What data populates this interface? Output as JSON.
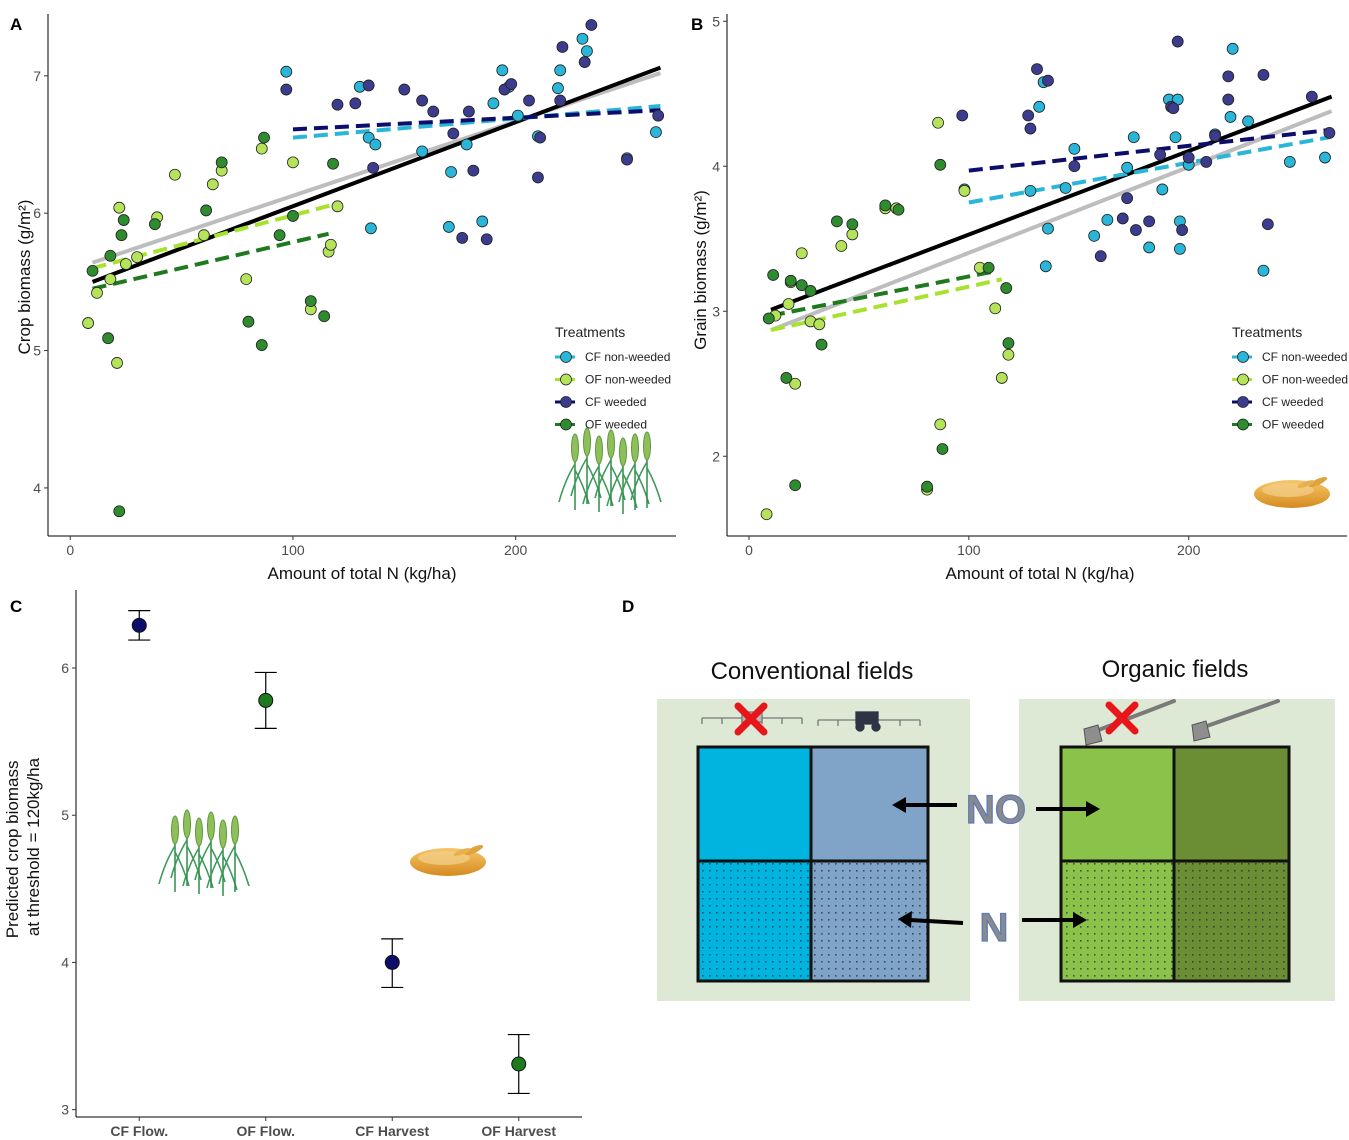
{
  "panels": {
    "a": "A",
    "b": "B",
    "c": "C",
    "d": "D"
  },
  "colors": {
    "cf_non_weeded": "#29b6d8",
    "of_non_weeded": "#b5e35a",
    "cf_weeded": "#3c3c8f",
    "of_weeded": "#2e8b2e",
    "cf_non_weeded_line": "#29b6d8",
    "of_non_weeded_line": "#a6e22e",
    "cf_weeded_line": "#0d0d6b",
    "of_weeded_line": "#1f7a1f",
    "overall_line": "#000000",
    "overall_line_2": "#bdbdbd",
    "conv_a": "#00b4e0",
    "conv_b": "#7fa4c8",
    "org_a": "#8bc34a",
    "org_b": "#6b8e35",
    "field_bg": "#dde9d4"
  },
  "legend": {
    "title": "Treatments",
    "items": [
      "CF non-weeded",
      "OF non-weeded",
      "CF weeded",
      "OF weeded"
    ]
  },
  "chart_data": [
    {
      "panel": "A",
      "type": "scatter",
      "xlabel": "Amount of total N (kg/ha)",
      "ylabel": "Crop biomass (g/m²)",
      "xlim": [
        -10,
        272
      ],
      "ylim": [
        3.65,
        7.45
      ],
      "xticks": [
        0,
        100,
        200
      ],
      "yticks": [
        4,
        5,
        6,
        7
      ],
      "series": [
        {
          "name": "CF non-weeded",
          "points": [
            [
              97,
              7.03
            ],
            [
              130,
              6.92
            ],
            [
              134,
              6.55
            ],
            [
              137,
              6.5
            ],
            [
              135,
              5.89
            ],
            [
              158,
              6.45
            ],
            [
              171,
              6.3
            ],
            [
              170,
              5.9
            ],
            [
              178,
              6.5
            ],
            [
              185,
              5.94
            ],
            [
              190,
              6.8
            ],
            [
              194,
              7.04
            ],
            [
              197,
              6.92
            ],
            [
              201,
              6.71
            ],
            [
              210,
              6.56
            ],
            [
              219,
              6.91
            ],
            [
              220,
              7.04
            ],
            [
              230,
              7.27
            ],
            [
              232,
              7.18
            ],
            [
              263,
              6.59
            ],
            [
              250,
              6.4
            ]
          ]
        },
        {
          "name": "OF non-weeded",
          "points": [
            [
              8,
              5.2
            ],
            [
              12,
              5.42
            ],
            [
              18,
              5.52
            ],
            [
              21,
              4.91
            ],
            [
              22,
              6.04
            ],
            [
              25,
              5.63
            ],
            [
              30,
              5.68
            ],
            [
              39,
              5.97
            ],
            [
              47,
              6.28
            ],
            [
              60,
              5.84
            ],
            [
              64,
              6.21
            ],
            [
              68,
              6.31
            ],
            [
              79,
              5.52
            ],
            [
              86,
              6.47
            ],
            [
              100,
              6.37
            ],
            [
              108,
              5.3
            ],
            [
              116,
              5.72
            ],
            [
              117,
              5.77
            ],
            [
              120,
              6.05
            ]
          ]
        },
        {
          "name": "CF weeded",
          "points": [
            [
              97,
              6.9
            ],
            [
              120,
              6.79
            ],
            [
              128,
              6.8
            ],
            [
              134,
              6.93
            ],
            [
              136,
              6.33
            ],
            [
              150,
              6.9
            ],
            [
              158,
              6.82
            ],
            [
              163,
              6.74
            ],
            [
              172,
              6.58
            ],
            [
              176,
              5.82
            ],
            [
              179,
              6.74
            ],
            [
              181,
              6.31
            ],
            [
              187,
              5.81
            ],
            [
              195,
              6.9
            ],
            [
              198,
              6.94
            ],
            [
              206,
              6.82
            ],
            [
              210,
              6.26
            ],
            [
              211,
              6.55
            ],
            [
              220,
              6.82
            ],
            [
              221,
              7.21
            ],
            [
              231,
              7.1
            ],
            [
              234,
              7.37
            ],
            [
              250,
              6.39
            ],
            [
              264,
              6.71
            ]
          ]
        },
        {
          "name": "OF weeded",
          "points": [
            [
              10,
              5.58
            ],
            [
              17,
              5.09
            ],
            [
              18,
              5.69
            ],
            [
              22,
              3.83
            ],
            [
              23,
              5.84
            ],
            [
              24,
              5.95
            ],
            [
              38,
              5.92
            ],
            [
              61,
              6.02
            ],
            [
              68,
              6.37
            ],
            [
              80,
              5.21
            ],
            [
              86,
              5.04
            ],
            [
              87,
              6.55
            ],
            [
              94,
              5.84
            ],
            [
              100,
              5.98
            ],
            [
              108,
              5.36
            ],
            [
              114,
              5.25
            ],
            [
              118,
              6.36
            ]
          ]
        }
      ],
      "fits": [
        {
          "name": "CF non-weeded",
          "x": [
            100,
            265
          ],
          "y": [
            6.55,
            6.78
          ]
        },
        {
          "name": "OF non-weeded",
          "x": [
            10,
            120
          ],
          "y": [
            5.6,
            6.07
          ]
        },
        {
          "name": "CF weeded",
          "x": [
            100,
            265
          ],
          "y": [
            6.61,
            6.75
          ]
        },
        {
          "name": "OF weeded",
          "x": [
            10,
            116
          ],
          "y": [
            5.45,
            5.85
          ]
        },
        {
          "name": "overall-grey",
          "x": [
            10,
            265
          ],
          "y": [
            5.64,
            7.02
          ]
        },
        {
          "name": "overall-black",
          "x": [
            10,
            265
          ],
          "y": [
            5.5,
            7.06
          ]
        }
      ]
    },
    {
      "panel": "B",
      "type": "scatter",
      "xlabel": "Amount of total N (kg/ha)",
      "ylabel": "Grain biomass (g/m²)",
      "xlim": [
        -10,
        272
      ],
      "ylim": [
        1.45,
        5.05
      ],
      "xticks": [
        0,
        100,
        200
      ],
      "yticks": [
        2,
        3,
        4,
        5
      ],
      "series": [
        {
          "name": "CF non-weeded",
          "points": [
            [
              98,
              3.84
            ],
            [
              128,
              3.83
            ],
            [
              132,
              4.41
            ],
            [
              134,
              4.58
            ],
            [
              135,
              3.31
            ],
            [
              136,
              3.57
            ],
            [
              144,
              3.85
            ],
            [
              148,
              4.12
            ],
            [
              157,
              3.52
            ],
            [
              163,
              3.63
            ],
            [
              172,
              3.99
            ],
            [
              175,
              4.2
            ],
            [
              182,
              3.44
            ],
            [
              188,
              3.84
            ],
            [
              191,
              4.46
            ],
            [
              194,
              4.2
            ],
            [
              195,
              4.46
            ],
            [
              196,
              3.43
            ],
            [
              196,
              3.62
            ],
            [
              200,
              4.01
            ],
            [
              212,
              4.22
            ],
            [
              219,
              4.34
            ],
            [
              220,
              4.81
            ],
            [
              227,
              4.31
            ],
            [
              234,
              3.28
            ],
            [
              246,
              4.03
            ],
            [
              262,
              4.06
            ]
          ]
        },
        {
          "name": "OF non-weeded",
          "points": [
            [
              8,
              1.6
            ],
            [
              12,
              2.97
            ],
            [
              18,
              3.05
            ],
            [
              19,
              3.2
            ],
            [
              21,
              2.5
            ],
            [
              24,
              3.4
            ],
            [
              28,
              2.93
            ],
            [
              32,
              2.91
            ],
            [
              42,
              3.45
            ],
            [
              47,
              3.53
            ],
            [
              62,
              3.71
            ],
            [
              67,
              3.71
            ],
            [
              81,
              1.77
            ],
            [
              86,
              4.3
            ],
            [
              87,
              2.22
            ],
            [
              98,
              3.83
            ],
            [
              105,
              3.3
            ],
            [
              112,
              3.02
            ],
            [
              115,
              2.54
            ],
            [
              118,
              2.7
            ]
          ]
        },
        {
          "name": "CF weeded",
          "points": [
            [
              97,
              4.35
            ],
            [
              127,
              4.35
            ],
            [
              128,
              4.26
            ],
            [
              131,
              4.67
            ],
            [
              136,
              4.59
            ],
            [
              148,
              4.0
            ],
            [
              160,
              3.38
            ],
            [
              170,
              3.64
            ],
            [
              172,
              3.78
            ],
            [
              176,
              3.56
            ],
            [
              182,
              3.62
            ],
            [
              187,
              4.08
            ],
            [
              192,
              4.41
            ],
            [
              193,
              4.4
            ],
            [
              195,
              4.86
            ],
            [
              197,
              3.56
            ],
            [
              200,
              4.06
            ],
            [
              208,
              4.03
            ],
            [
              212,
              4.21
            ],
            [
              218,
              4.62
            ],
            [
              218,
              4.46
            ],
            [
              234,
              4.63
            ],
            [
              236,
              3.6
            ],
            [
              256,
              4.48
            ],
            [
              264,
              4.23
            ]
          ]
        },
        {
          "name": "OF weeded",
          "points": [
            [
              9,
              2.95
            ],
            [
              11,
              3.25
            ],
            [
              17,
              2.54
            ],
            [
              19,
              3.21
            ],
            [
              21,
              1.8
            ],
            [
              24,
              3.18
            ],
            [
              28,
              3.14
            ],
            [
              33,
              2.77
            ],
            [
              40,
              3.62
            ],
            [
              47,
              3.6
            ],
            [
              62,
              3.73
            ],
            [
              68,
              3.7
            ],
            [
              81,
              1.79
            ],
            [
              87,
              4.01
            ],
            [
              88,
              2.05
            ],
            [
              109,
              3.3
            ],
            [
              117,
              3.16
            ],
            [
              118,
              2.78
            ]
          ]
        }
      ],
      "fits": [
        {
          "name": "CF non-weeded",
          "x": [
            100,
            264
          ],
          "y": [
            3.75,
            4.2
          ]
        },
        {
          "name": "OF non-weeded",
          "x": [
            10,
            115
          ],
          "y": [
            2.87,
            3.22
          ]
        },
        {
          "name": "CF weeded",
          "x": [
            100,
            264
          ],
          "y": [
            3.97,
            4.25
          ]
        },
        {
          "name": "OF weeded",
          "x": [
            10,
            110
          ],
          "y": [
            2.97,
            3.27
          ]
        },
        {
          "name": "overall-grey",
          "x": [
            10,
            265
          ],
          "y": [
            2.87,
            4.38
          ]
        },
        {
          "name": "overall-black",
          "x": [
            10,
            265
          ],
          "y": [
            3.01,
            4.48
          ]
        }
      ]
    },
    {
      "panel": "C",
      "type": "errorbar",
      "ylabel": "Predicted crop biomass\nat threshold = 120kg/ha",
      "categories": [
        "CF Flow.",
        "OF Flow.",
        "CF Harvest",
        "OF Harvest"
      ],
      "values": [
        6.29,
        5.78,
        4.0,
        3.31
      ],
      "lower": [
        6.19,
        5.59,
        3.83,
        3.11
      ],
      "upper": [
        6.39,
        5.97,
        4.16,
        3.51
      ],
      "ylim": [
        2.95,
        6.53
      ],
      "yticks": [
        3,
        4,
        5,
        6
      ]
    }
  ],
  "diagram": {
    "conventional_title": "Conventional fields",
    "organic_title": "Organic fields",
    "no_label": "NO",
    "n_label": "N"
  }
}
